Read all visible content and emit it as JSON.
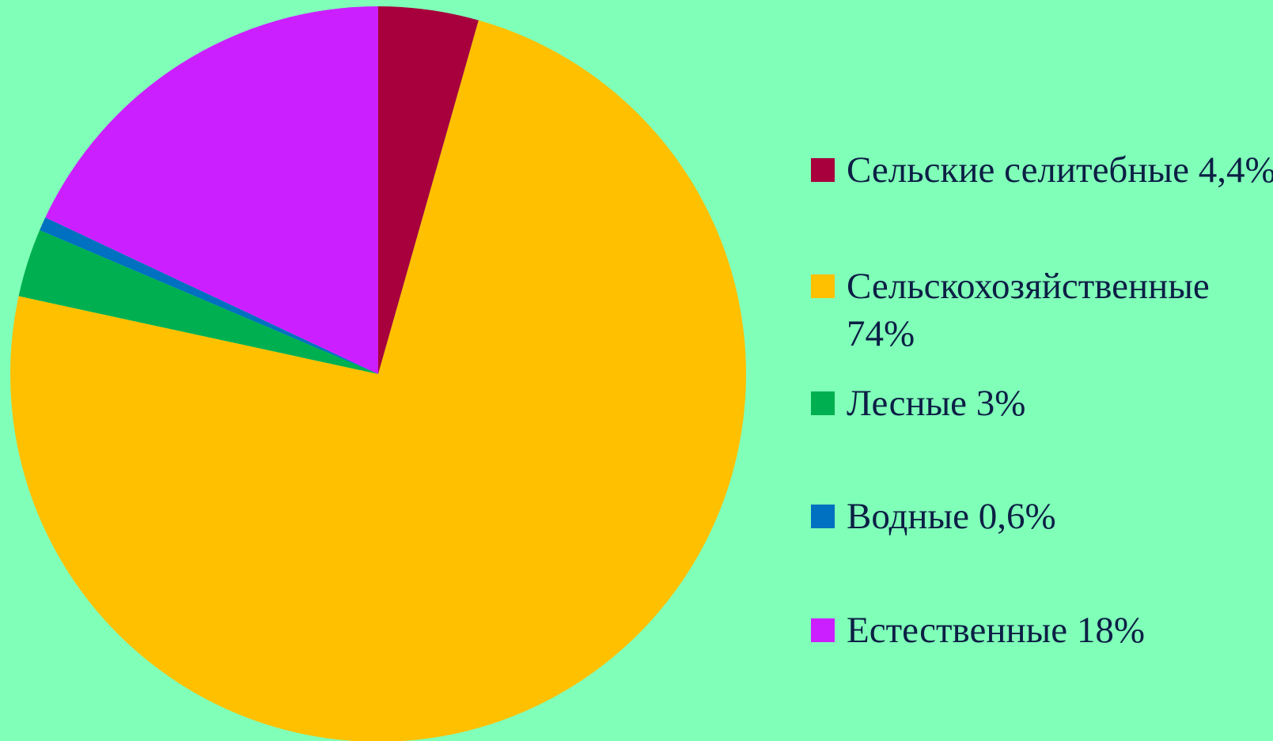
{
  "chart_data": {
    "type": "pie",
    "categories": [
      "Сельские селитебные",
      "Сельскохозяйственные",
      "Лесные",
      "Водные",
      "Естественные"
    ],
    "values": [
      4.4,
      74,
      3,
      0.6,
      18
    ],
    "value_labels": [
      "4,4%",
      "74%",
      "3%",
      "0,6%",
      "18%"
    ],
    "colors": [
      "#a8003c",
      "#ffc000",
      "#00b050",
      "#0070c0",
      "#cc1fff"
    ],
    "legend": "right"
  }
}
